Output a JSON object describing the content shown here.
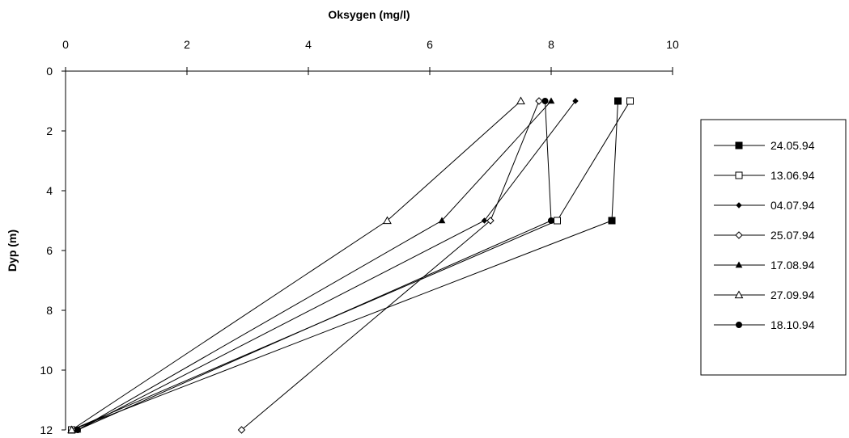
{
  "chart_data": {
    "type": "line",
    "title": "Oksygen (mg/l)",
    "xlabel": "Oksygen (mg/l)",
    "ylabel": "Dyp (m)",
    "xlim": [
      0,
      10
    ],
    "ylim": [
      0,
      12
    ],
    "x_axis_position": "top",
    "y_axis_inverted": true,
    "x_ticks": [
      0,
      2,
      4,
      6,
      8,
      10
    ],
    "y_ticks": [
      0,
      2,
      4,
      6,
      8,
      10,
      12
    ],
    "grid": false,
    "legend_position": "right",
    "series": [
      {
        "name": "24.05.94",
        "marker": "square-filled",
        "points": [
          [
            9.1,
            1
          ],
          [
            9.0,
            5
          ],
          [
            0.1,
            12
          ]
        ]
      },
      {
        "name": "13.06.94",
        "marker": "square-open",
        "points": [
          [
            9.3,
            1
          ],
          [
            8.1,
            5
          ],
          [
            0.1,
            12
          ]
        ]
      },
      {
        "name": "04.07.94",
        "marker": "diamond-filled",
        "points": [
          [
            8.4,
            1
          ],
          [
            6.9,
            5
          ],
          [
            0.2,
            12
          ]
        ]
      },
      {
        "name": "25.07.94",
        "marker": "diamond-open",
        "points": [
          [
            7.8,
            1
          ],
          [
            7.0,
            5
          ],
          [
            2.9,
            12
          ]
        ]
      },
      {
        "name": "17.08.94",
        "marker": "triangle-filled",
        "points": [
          [
            8.0,
            1
          ],
          [
            6.2,
            5
          ],
          [
            0.2,
            12
          ]
        ]
      },
      {
        "name": "27.09.94",
        "marker": "triangle-open",
        "points": [
          [
            7.5,
            1
          ],
          [
            5.3,
            5
          ],
          [
            0.1,
            12
          ]
        ]
      },
      {
        "name": "18.10.94",
        "marker": "circle-filled",
        "points": [
          [
            7.9,
            1
          ],
          [
            8.0,
            5
          ],
          [
            0.2,
            12
          ]
        ]
      }
    ]
  }
}
